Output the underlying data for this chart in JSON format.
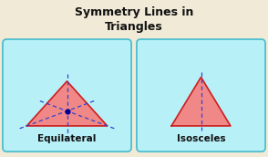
{
  "title": "Symmetry Lines in\nTriangles",
  "title_fontsize": 9,
  "title_color": "#111111",
  "bg_color": "#f0ead6",
  "box_bg": "#b8f0f8",
  "box_edge": "#44bbcc",
  "tri_fill": "#f08888",
  "tri_edge": "#cc2222",
  "sym_line_color": "#3344cc",
  "dot_color": "#000099",
  "label1": "Equilateral",
  "label2": "Isosceles",
  "label_fontsize": 7.5,
  "xlim": [
    0,
    10
  ],
  "ylim": [
    0,
    5.8
  ]
}
